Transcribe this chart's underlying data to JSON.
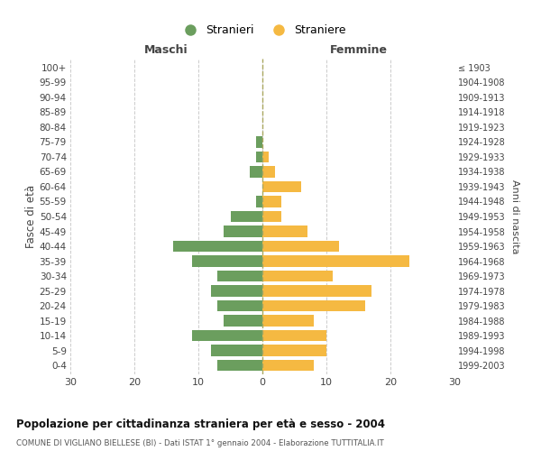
{
  "age_groups": [
    "0-4",
    "5-9",
    "10-14",
    "15-19",
    "20-24",
    "25-29",
    "30-34",
    "35-39",
    "40-44",
    "45-49",
    "50-54",
    "55-59",
    "60-64",
    "65-69",
    "70-74",
    "75-79",
    "80-84",
    "85-89",
    "90-94",
    "95-99",
    "100+"
  ],
  "birth_years": [
    "1999-2003",
    "1994-1998",
    "1989-1993",
    "1984-1988",
    "1979-1983",
    "1974-1978",
    "1969-1973",
    "1964-1968",
    "1959-1963",
    "1954-1958",
    "1949-1953",
    "1944-1948",
    "1939-1943",
    "1934-1938",
    "1929-1933",
    "1924-1928",
    "1919-1923",
    "1914-1918",
    "1909-1913",
    "1904-1908",
    "≤ 1903"
  ],
  "males": [
    7,
    8,
    11,
    6,
    7,
    8,
    7,
    11,
    14,
    6,
    5,
    1,
    0,
    2,
    1,
    1,
    0,
    0,
    0,
    0,
    0
  ],
  "females": [
    8,
    10,
    10,
    8,
    16,
    17,
    11,
    23,
    12,
    7,
    3,
    3,
    6,
    2,
    1,
    0,
    0,
    0,
    0,
    0,
    0
  ],
  "male_color": "#6b9e5e",
  "female_color": "#f5b942",
  "background_color": "#ffffff",
  "grid_color": "#cccccc",
  "title": "Popolazione per cittadinanza straniera per età e sesso - 2004",
  "subtitle": "COMUNE DI VIGLIANO BIELLESE (BI) - Dati ISTAT 1° gennaio 2004 - Elaborazione TUTTITALIA.IT",
  "xlabel_left": "Maschi",
  "xlabel_right": "Femmine",
  "ylabel_left": "Fasce di età",
  "ylabel_right": "Anni di nascita",
  "legend_males": "Stranieri",
  "legend_females": "Straniere",
  "xlim": 30,
  "bar_height": 0.75
}
